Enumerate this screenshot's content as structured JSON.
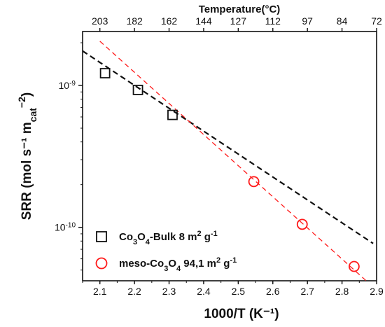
{
  "chart_data": {
    "type": "scatter",
    "xlabel": "1000/T (K⁻¹)",
    "x_top_label": "Temperature(°C)",
    "ylabel": "SRR (mol s⁻¹ m",
    "ylabel_sub": "cat",
    "ylabel_sup": "−2",
    "ylabel_close": ")",
    "xlim": [
      2.05,
      2.9
    ],
    "ylim": [
      4.2e-11,
      2.4e-09
    ],
    "yscale": "log",
    "x_ticks": [
      2.1,
      2.2,
      2.3,
      2.4,
      2.5,
      2.6,
      2.7,
      2.8,
      2.9
    ],
    "x_tick_labels": [
      "2.1",
      "2.2",
      "2.3",
      "2.4",
      "2.5",
      "2.6",
      "2.7",
      "2.8",
      "2.9"
    ],
    "y_ticks": [
      1e-10,
      1e-09
    ],
    "y_tick_labels": [
      {
        "base": "10",
        "exp": "-10"
      },
      {
        "base": "10",
        "exp": "-9"
      }
    ],
    "top_ticks": [
      {
        "label": "203",
        "x": 2.1
      },
      {
        "label": "182",
        "x": 2.2
      },
      {
        "label": "162",
        "x": 2.3
      },
      {
        "label": "144",
        "x": 2.4
      },
      {
        "label": "127",
        "x": 2.5
      },
      {
        "label": "112",
        "x": 2.6
      },
      {
        "label": "97",
        "x": 2.7
      },
      {
        "label": "84",
        "x": 2.8
      },
      {
        "label": "72",
        "x": 2.9
      }
    ],
    "series": [
      {
        "name": "Co3O4-Bulk 8 m2 g-1",
        "marker": "square",
        "color": "#111111",
        "x": [
          2.115,
          2.21,
          2.31
        ],
        "y": [
          1.22e-09,
          9.3e-10,
          6.2e-10
        ],
        "fit": {
          "x": [
            2.05,
            2.89
          ],
          "y": [
            1.75e-09,
            7.7e-11
          ]
        }
      },
      {
        "name": "meso-Co3O4 94,1 m2 g-1",
        "marker": "circle",
        "color": "#ff1a1a",
        "x": [
          2.545,
          2.685,
          2.835
        ],
        "y": [
          2.1e-10,
          1.05e-10,
          5.3e-11
        ],
        "fit": {
          "x": [
            2.1,
            2.87
          ],
          "y": [
            2.05e-09,
            4.2e-11
          ]
        }
      }
    ],
    "legend": {
      "placement": "bottom-left",
      "items": [
        {
          "parts": [
            {
              "t": "Co",
              "s": "n"
            },
            {
              "t": "3",
              "s": "sub"
            },
            {
              "t": "O",
              "s": "n"
            },
            {
              "t": "4",
              "s": "sub"
            },
            {
              "t": "-Bulk 8 m",
              "s": "n"
            },
            {
              "t": "2",
              "s": "sup"
            },
            {
              "t": " g",
              "s": "n"
            },
            {
              "t": "-1",
              "s": "sup"
            }
          ]
        },
        {
          "parts": [
            {
              "t": "meso-Co",
              "s": "n"
            },
            {
              "t": "3",
              "s": "sub"
            },
            {
              "t": "O",
              "s": "n"
            },
            {
              "t": "4",
              "s": "sub"
            },
            {
              "t": " 94,1 m",
              "s": "n"
            },
            {
              "t": "2",
              "s": "sup"
            },
            {
              "t": " g",
              "s": "n"
            },
            {
              "t": "-1",
              "s": "sup"
            }
          ]
        }
      ]
    },
    "grid": false
  }
}
